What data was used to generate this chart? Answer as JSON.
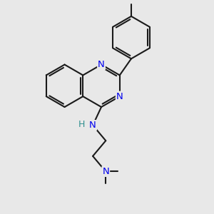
{
  "bg_color": "#e8e8e8",
  "bond_color": "#1a1a1a",
  "N_color": "#0000ee",
  "H_color": "#2f8f8f",
  "line_width": 1.5,
  "figsize": [
    3.0,
    3.0
  ],
  "dpi": 100,
  "xlim": [
    0,
    10
  ],
  "ylim": [
    0,
    10
  ],
  "bl": 1.0
}
